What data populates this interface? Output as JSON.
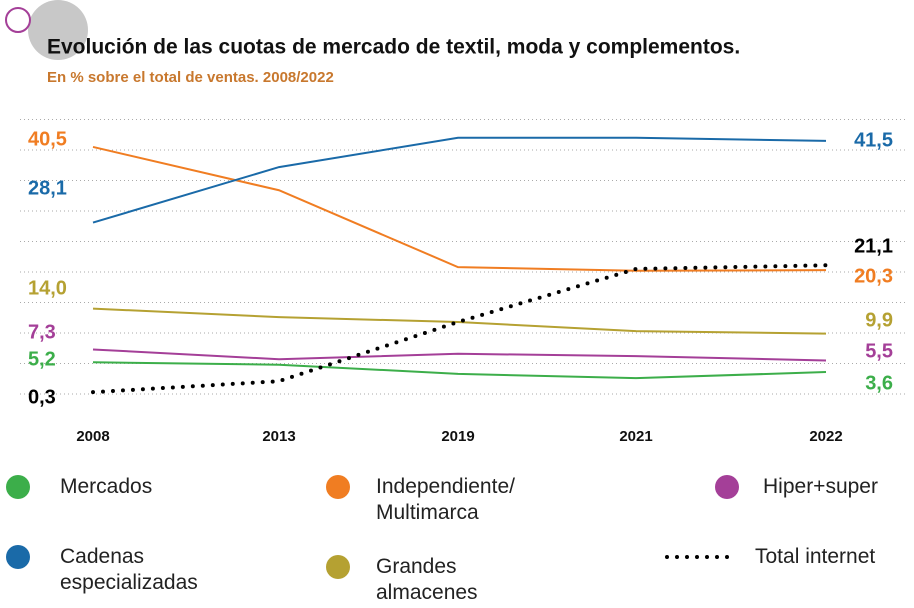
{
  "chart_data": {
    "type": "line",
    "title": "Evolución de las cuotas de mercado de textil, moda y complementos.",
    "subtitle": "En % sobre el total de ventas. 2008/2022",
    "categories": [
      "2008",
      "2013",
      "2019",
      "2021",
      "2022"
    ],
    "ylim": [
      0,
      45
    ],
    "yticks": [
      0,
      5,
      10,
      15,
      20,
      25,
      30,
      35,
      40,
      45
    ],
    "grid": true,
    "series": [
      {
        "name": "Mercados",
        "color": "#3cae4a",
        "values": [
          5.2,
          4.8,
          3.3,
          2.6,
          3.6
        ],
        "value_labels": [
          "5,2",
          null,
          null,
          null,
          "3,6"
        ]
      },
      {
        "name": "Independiente/ Multimarca",
        "color": "#f07d22",
        "values": [
          40.5,
          33.4,
          20.8,
          20.2,
          20.3
        ],
        "value_labels": [
          "40,5",
          null,
          null,
          null,
          "20,3"
        ]
      },
      {
        "name": "Hiper+super",
        "color": "#a43f98",
        "values": [
          7.3,
          5.7,
          6.6,
          6.2,
          5.5
        ],
        "value_labels": [
          "7,3",
          null,
          null,
          null,
          "5,5"
        ]
      },
      {
        "name": "Cadenas especializadas",
        "color": "#1a6aa8",
        "values": [
          28.1,
          37.2,
          42.0,
          42.0,
          41.5
        ],
        "value_labels": [
          "28,1",
          null,
          null,
          null,
          "41,5"
        ]
      },
      {
        "name": "Grandes almacenes",
        "color": "#b5a132",
        "values": [
          14.0,
          12.6,
          11.8,
          10.3,
          9.9
        ],
        "value_labels": [
          "14,0",
          null,
          null,
          null,
          "9,9"
        ]
      },
      {
        "name": "Total internet",
        "color": "#000000",
        "dotted": true,
        "values": [
          0.3,
          2.1,
          11.8,
          20.5,
          21.1
        ],
        "value_labels": [
          "0,3",
          null,
          null,
          null,
          "21,1"
        ]
      }
    ]
  }
}
